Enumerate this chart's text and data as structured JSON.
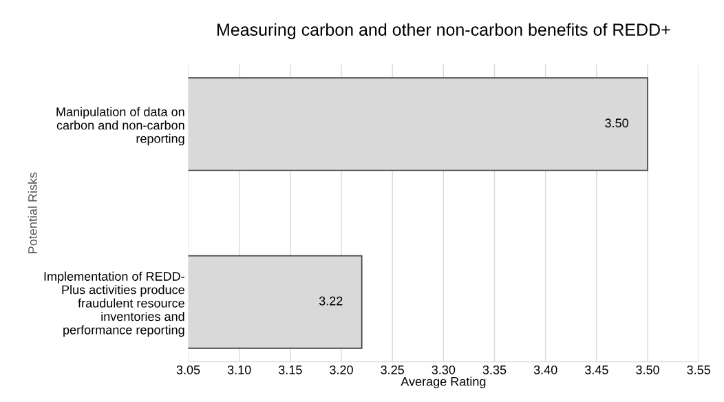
{
  "chart_data": {
    "type": "bar",
    "orientation": "horizontal",
    "title": "Measuring carbon and other non-carbon benefits of REDD+",
    "xlabel": "Average Rating",
    "ylabel": "Potential Risks",
    "categories": [
      "Manipulation of data on\ncarbon and non-carbon\nreporting",
      "Implementation of REDD-\nPlus activities produce\nfraudulent resource\ninventories and\nperformance reporting"
    ],
    "values": [
      3.5,
      3.22
    ],
    "color": "#d9d9d9",
    "data_labels": true,
    "value_labels": [
      "3.50",
      "3.22"
    ],
    "xlim": [
      3.05,
      3.55
    ],
    "xticks": [
      {
        "value": 3.05,
        "label": "3.05"
      },
      {
        "value": 3.1,
        "label": "3.10"
      },
      {
        "value": 3.15,
        "label": "3.15"
      },
      {
        "value": 3.2,
        "label": "3.20"
      },
      {
        "value": 3.25,
        "label": "3.25"
      },
      {
        "value": 3.3,
        "label": "3.30"
      },
      {
        "value": 3.35,
        "label": "3.35"
      },
      {
        "value": 3.4,
        "label": "3.40"
      },
      {
        "value": 3.45,
        "label": "3.45"
      },
      {
        "value": 3.5,
        "label": "3.50"
      },
      {
        "value": 3.55,
        "label": "3.55"
      }
    ],
    "grid": "x",
    "legend": false
  }
}
